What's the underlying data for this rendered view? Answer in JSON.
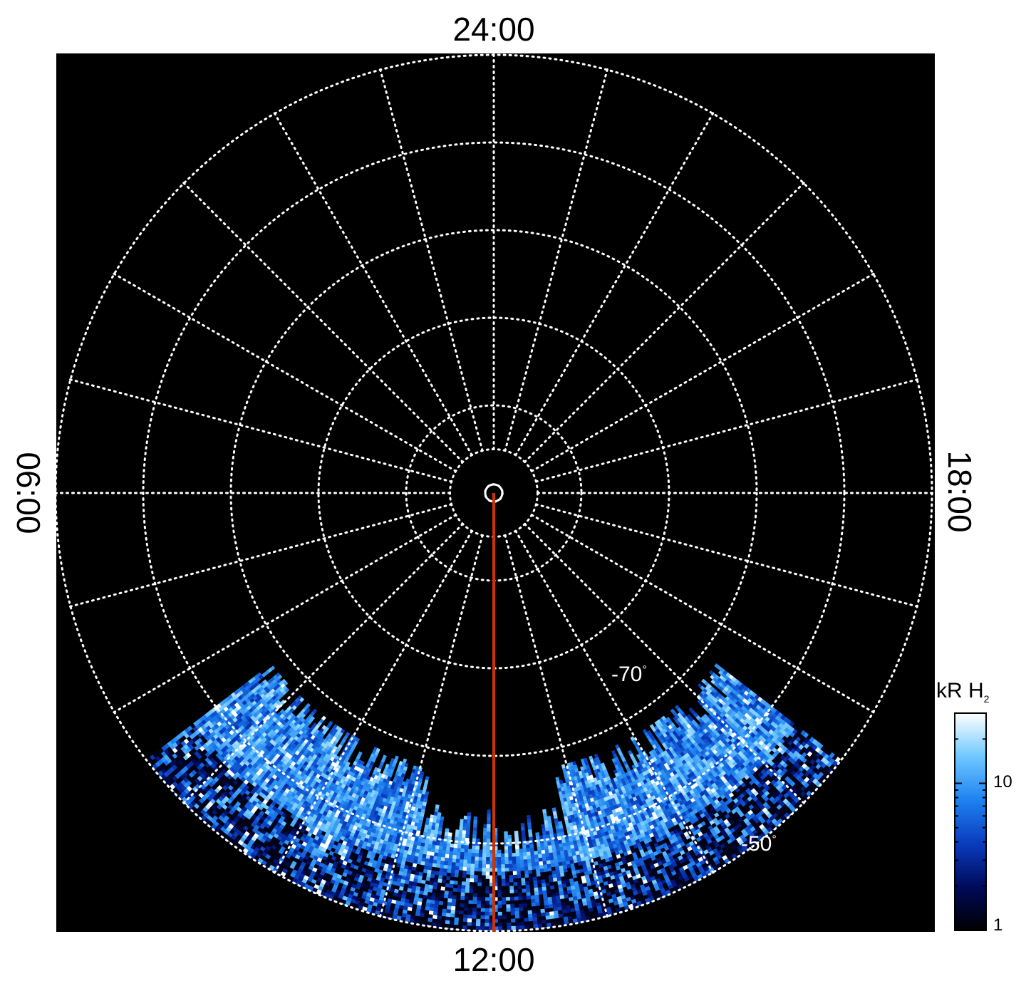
{
  "chart_data": {
    "type": "heatmap",
    "projection": "polar",
    "local_time_labels": {
      "top": "24:00",
      "bottom": "12:00",
      "left": "06:00",
      "right": "18:00"
    },
    "latitude_labels": [
      "-70",
      "-50"
    ],
    "degree_symbol": "°",
    "latitude_circles": [
      -89,
      -85,
      -80,
      -70,
      -60,
      -50,
      -40
    ],
    "meridian_step_hours": 1,
    "grid": true,
    "background_color": "#000000",
    "grid_color": "#ffffff",
    "marker": {
      "local_time": "12:00",
      "color": "#cc3300"
    },
    "emission_band": {
      "local_time_start": "08:30",
      "local_time_end": "15:30",
      "description_units": "kR"
    },
    "colorbar": {
      "title_main": "kR H",
      "title_sub": "2",
      "scale": "log",
      "range": [
        1,
        30
      ],
      "tick_labels": [
        "1",
        "10"
      ],
      "colors": [
        "#000000",
        "#000a5a",
        "#0a3cbe",
        "#1e82f0",
        "#6ec8ff",
        "#ffffff"
      ],
      "location": "right"
    }
  }
}
